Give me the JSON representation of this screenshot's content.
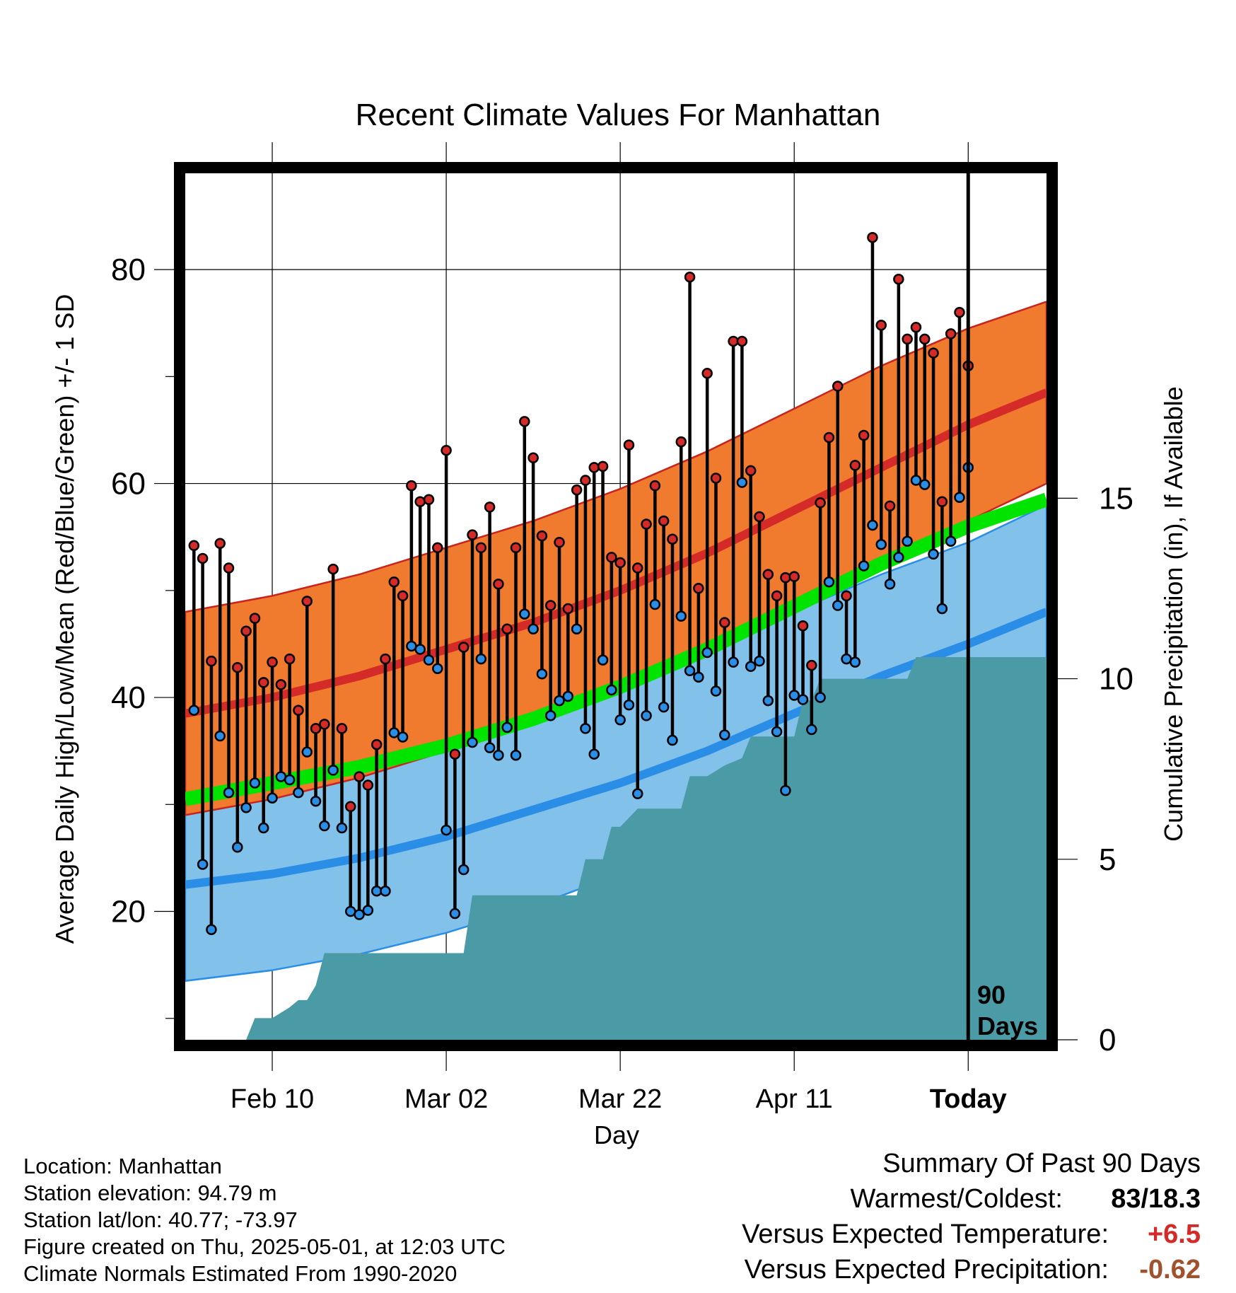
{
  "title": "Recent Climate Values For Manhattan",
  "ylabel_left": "Average Daily High/Low/Mean (Red/Blue/Green) +/- 1 SD",
  "ylabel_right": "Cumulative Precipitation (in), If Available",
  "xlabel": "Day",
  "today_marker": {
    "line1": "90",
    "line2": "Days"
  },
  "info": {
    "location": "Location: Manhattan",
    "elevation": "Station elevation: 94.79 m",
    "latlon": "Station lat/lon: 40.77; -73.97",
    "created": "Figure created on Thu, 2025-05-01, at 12:03 UTC",
    "normals": "Climate Normals Estimated From 1990-2020"
  },
  "summary": {
    "heading": "Summary Of Past 90 Days",
    "warm_cold_label": "Warmest/Coldest:",
    "warm_cold_value": "83/18.3",
    "temp_label": "Versus Expected Temperature:",
    "temp_value": "+6.5",
    "precip_label": "Versus Expected Precipitation:",
    "precip_value": "-0.62"
  },
  "colors": {
    "high": "#d42a28",
    "low": "#2a8ee6",
    "mean": "#00e400",
    "high_band": "#f07a2e",
    "low_band": "#82c2ea",
    "precip": "#4a9ba5",
    "temp_value": "#d42a28",
    "precip_value": "#a0522d"
  },
  "chart_data": {
    "type": "line",
    "x_unit": "day offset from Today (0 = Today)",
    "xlim": [
      -90,
      9
    ],
    "x_ticks": [
      {
        "x": -80,
        "label": "Feb 10"
      },
      {
        "x": -60,
        "label": "Mar 02"
      },
      {
        "x": -40,
        "label": "Mar 22"
      },
      {
        "x": -20,
        "label": "Apr 11"
      },
      {
        "x": 0,
        "label": "Today"
      }
    ],
    "ylim_left": [
      8,
      89
    ],
    "y_ticks_left": [
      20,
      40,
      60,
      80
    ],
    "ylim_right": [
      0,
      24
    ],
    "y_ticks_right": [
      0,
      5,
      10,
      15
    ],
    "grid": true,
    "normals": {
      "x": [
        -90,
        -80,
        -70,
        -60,
        -50,
        -40,
        -30,
        -20,
        -10,
        0,
        9
      ],
      "high_mean": [
        38.5,
        40.0,
        42.0,
        44.5,
        47.0,
        50.0,
        53.5,
        57.5,
        61.5,
        65.5,
        68.5
      ],
      "high_sd_upper": [
        48.0,
        49.5,
        51.5,
        54.0,
        56.5,
        59.5,
        63.0,
        67.0,
        71.0,
        74.5,
        77.0
      ],
      "high_sd_lower": [
        29.0,
        30.5,
        32.5,
        35.0,
        37.5,
        40.5,
        44.0,
        48.0,
        52.0,
        56.5,
        60.0
      ],
      "mean_normal": [
        30.5,
        32.0,
        33.5,
        35.5,
        38.0,
        41.0,
        44.5,
        48.5,
        52.5,
        56.0,
        58.5
      ],
      "low_mean": [
        22.5,
        23.5,
        25.0,
        27.0,
        29.5,
        32.0,
        35.0,
        38.5,
        42.0,
        45.0,
        48.0
      ],
      "low_sd_upper": [
        31.5,
        32.5,
        34.0,
        36.5,
        39.0,
        41.5,
        44.5,
        48.0,
        51.5,
        54.5,
        58.0
      ],
      "low_sd_lower": [
        13.5,
        14.5,
        16.0,
        18.0,
        20.5,
        23.5,
        26.5,
        30.0,
        33.5,
        36.5,
        42.0
      ]
    },
    "series": [
      {
        "name": "High",
        "values": [
          54.2,
          53.0,
          43.4,
          54.4,
          52.1,
          42.8,
          46.2,
          47.4,
          41.4,
          43.3,
          41.2,
          43.6,
          38.8,
          49.0,
          37.1,
          37.5,
          52.0,
          37.1,
          29.8,
          32.6,
          31.8,
          35.6,
          43.6,
          50.8,
          49.5,
          59.8,
          58.3,
          58.5,
          54.0,
          63.1,
          34.7,
          44.7,
          55.2,
          54.0,
          57.8,
          50.6,
          46.4,
          54.0,
          65.8,
          62.4,
          55.1,
          48.6,
          54.5,
          48.3,
          59.4,
          60.3,
          61.5,
          61.6,
          53.1,
          52.6,
          63.6,
          52.1,
          56.2,
          59.8,
          56.5,
          54.8,
          63.9,
          79.3,
          50.2,
          70.3,
          60.5,
          47.0,
          73.3,
          73.3,
          61.2,
          56.9,
          51.5,
          49.5,
          51.2,
          51.3,
          46.7,
          43.0,
          58.2,
          64.3,
          69.1,
          49.5,
          61.7,
          64.5,
          83.0,
          74.8,
          57.9,
          79.1,
          73.5,
          74.6,
          73.5,
          72.2,
          58.3,
          74.0,
          76.0,
          71.0
        ]
      },
      {
        "name": "Low",
        "values": [
          38.8,
          24.4,
          18.3,
          36.4,
          31.1,
          26.0,
          29.7,
          32.0,
          27.8,
          30.6,
          32.6,
          32.3,
          31.1,
          34.9,
          30.3,
          28.0,
          33.2,
          27.8,
          20.0,
          19.7,
          20.1,
          21.9,
          21.9,
          36.7,
          36.3,
          44.8,
          44.5,
          43.5,
          42.7,
          27.6,
          19.8,
          23.9,
          35.8,
          43.6,
          35.3,
          34.6,
          37.2,
          34.6,
          47.8,
          46.4,
          42.2,
          38.3,
          39.7,
          40.1,
          46.4,
          37.1,
          34.7,
          43.5,
          40.7,
          37.9,
          39.3,
          31.0,
          38.3,
          48.7,
          39.1,
          36.0,
          47.6,
          42.5,
          41.9,
          44.2,
          40.6,
          36.5,
          43.3,
          60.1,
          42.9,
          43.4,
          39.7,
          36.8,
          31.3,
          40.2,
          39.8,
          37.0,
          40.0,
          50.8,
          48.6,
          43.6,
          43.3,
          52.3,
          56.1,
          54.3,
          50.6,
          53.1,
          54.6,
          60.3,
          59.9,
          53.4,
          48.3,
          54.6,
          58.7,
          61.5
        ]
      },
      {
        "name": "Cumulative Precipitation",
        "axis": "right",
        "x": [
          -83,
          -82,
          -80,
          -78,
          -77,
          -76,
          -75,
          -74,
          -73,
          -72,
          -60,
          -58,
          -57,
          -50,
          -45,
          -44,
          -43,
          -42,
          -41,
          -40,
          -38,
          -36,
          -33,
          -32,
          -30,
          -28,
          -26,
          -25,
          -22,
          -20,
          -19,
          -18,
          -17,
          -7,
          -6,
          -5,
          9
        ],
        "values": [
          0.0,
          0.6,
          0.6,
          0.9,
          1.1,
          1.1,
          1.5,
          2.4,
          2.4,
          2.4,
          2.4,
          2.4,
          4.0,
          4.0,
          4.0,
          5.0,
          5.0,
          5.0,
          5.9,
          5.9,
          6.4,
          6.4,
          6.4,
          7.3,
          7.3,
          7.6,
          7.8,
          8.4,
          8.4,
          8.4,
          9.4,
          9.4,
          10.0,
          10.0,
          10.6,
          10.6,
          10.6
        ]
      }
    ]
  }
}
